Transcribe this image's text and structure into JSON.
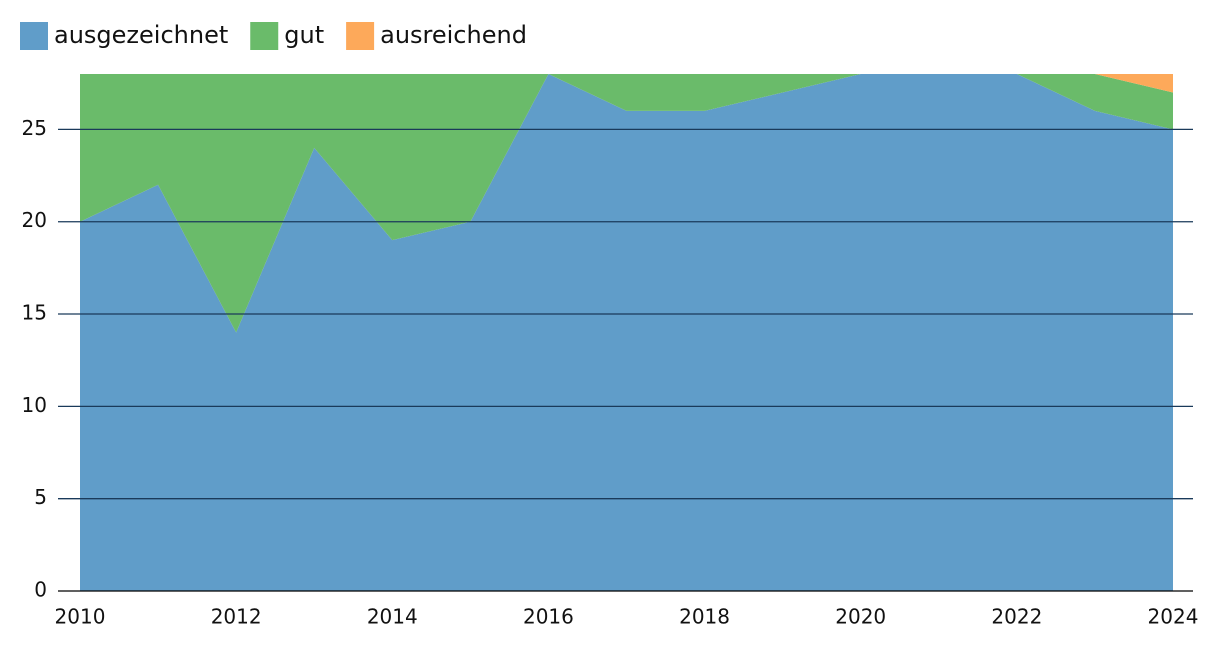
{
  "chart_data": {
    "type": "stacked_area",
    "x": [
      2010,
      2011,
      2012,
      2013,
      2014,
      2015,
      2016,
      2017,
      2018,
      2019,
      2020,
      2021,
      2022,
      2023,
      2024
    ],
    "series": [
      {
        "name": "ausgezeichnet",
        "color": "#609dc9",
        "values": [
          20,
          22,
          14,
          24,
          19,
          20,
          28,
          26,
          26,
          27,
          28,
          28,
          28,
          26,
          25
        ]
      },
      {
        "name": "gut",
        "color": "#6abb6a",
        "values": [
          8,
          6,
          14,
          4,
          9,
          8,
          0,
          2,
          2,
          1,
          0,
          0,
          0,
          2,
          2
        ]
      },
      {
        "name": "ausreichend",
        "color": "#fda95a",
        "values": [
          0,
          0,
          0,
          0,
          0,
          0,
          0,
          0,
          0,
          0,
          0,
          0,
          0,
          0,
          1
        ]
      }
    ],
    "xlim": [
      2010,
      2024
    ],
    "xticks": [
      2010,
      2012,
      2014,
      2016,
      2018,
      2020,
      2022,
      2024
    ],
    "ylim": [
      0,
      28
    ],
    "yticks": [
      0,
      5,
      10,
      15,
      20,
      25
    ],
    "grid": true,
    "legend": "top-left"
  }
}
